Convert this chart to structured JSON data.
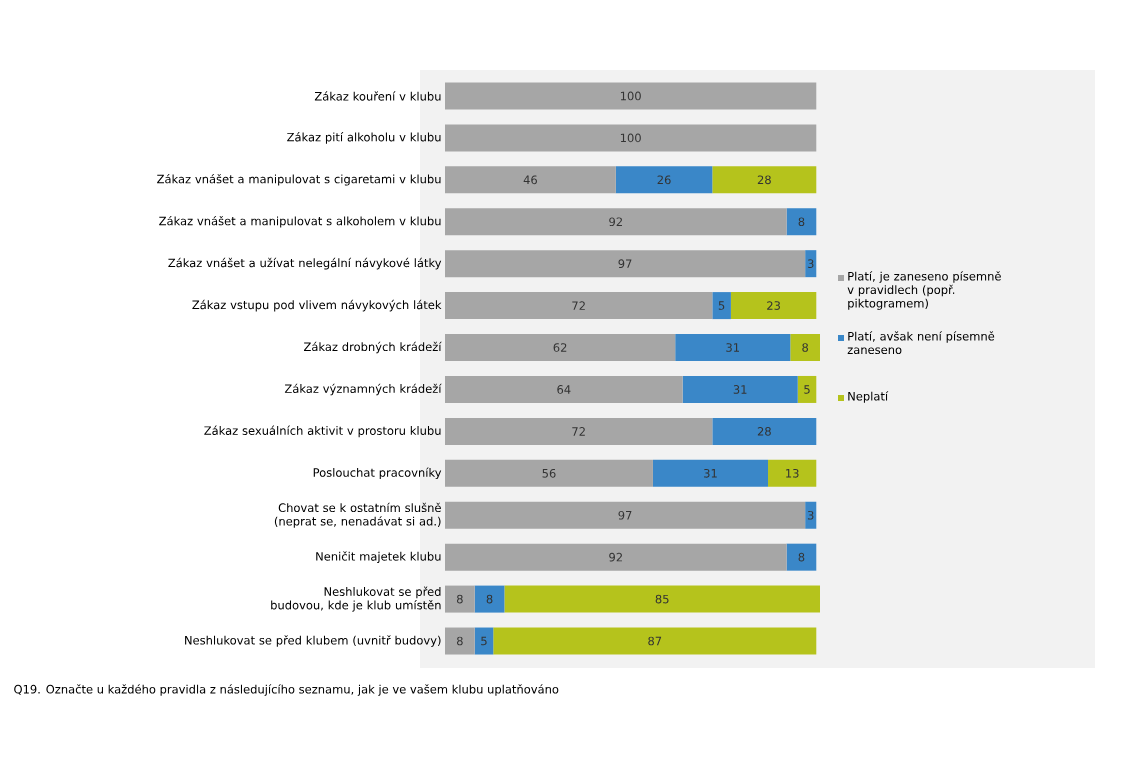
{
  "chart_data": {
    "type": "bar",
    "orientation": "horizontal",
    "stacked": true,
    "data_labels": true,
    "legend": "right",
    "categories": [
      "Zákaz kouření  v klubu",
      "Zákaz pití alkoholu v klubu",
      "Zákaz vnášet a manipulovat s cigaretami v klubu",
      "Zákaz vnášet a manipulovat s alkoholem v klubu",
      "Zákaz vnášet a užívat nelegální návykové látky",
      "Zákaz vstupu pod vlivem návykových látek",
      "Zákaz drobných krádeží",
      "Zákaz významných krádeží",
      "Zákaz sexuálních aktivit v prostoru klubu",
      "Poslouchat pracovníky",
      "Chovat se k ostatním slušně (neprat se, nenadávat si ad.)",
      "Neničit majetek klubu",
      "Neshlukovat se před budovou, kde je klub umístěn",
      "Neshlukovat se před klubem (uvnitř budovy)"
    ],
    "series": [
      {
        "name": "Platí, je zaneseno písemně v pravidlech (popř. piktogramem)",
        "color": "#a6a6a6",
        "values": [
          100,
          100,
          46,
          92,
          97,
          72,
          62,
          64,
          72,
          56,
          97,
          92,
          8,
          8
        ]
      },
      {
        "name": "Platí, avšak není písemně zaneseno",
        "color": "#3a87c8",
        "values": [
          null,
          null,
          26,
          8,
          3,
          5,
          31,
          31,
          28,
          31,
          3,
          8,
          8,
          5
        ]
      },
      {
        "name": "Neplatí",
        "color": "#b5c31c",
        "values": [
          null,
          null,
          28,
          null,
          null,
          23,
          8,
          5,
          null,
          13,
          null,
          null,
          85,
          87
        ]
      }
    ],
    "annotations": [
      "Q19. Označte u každého pravidla z následujícího seznamu, jak je ve vašem klubu uplatňováno"
    ]
  }
}
